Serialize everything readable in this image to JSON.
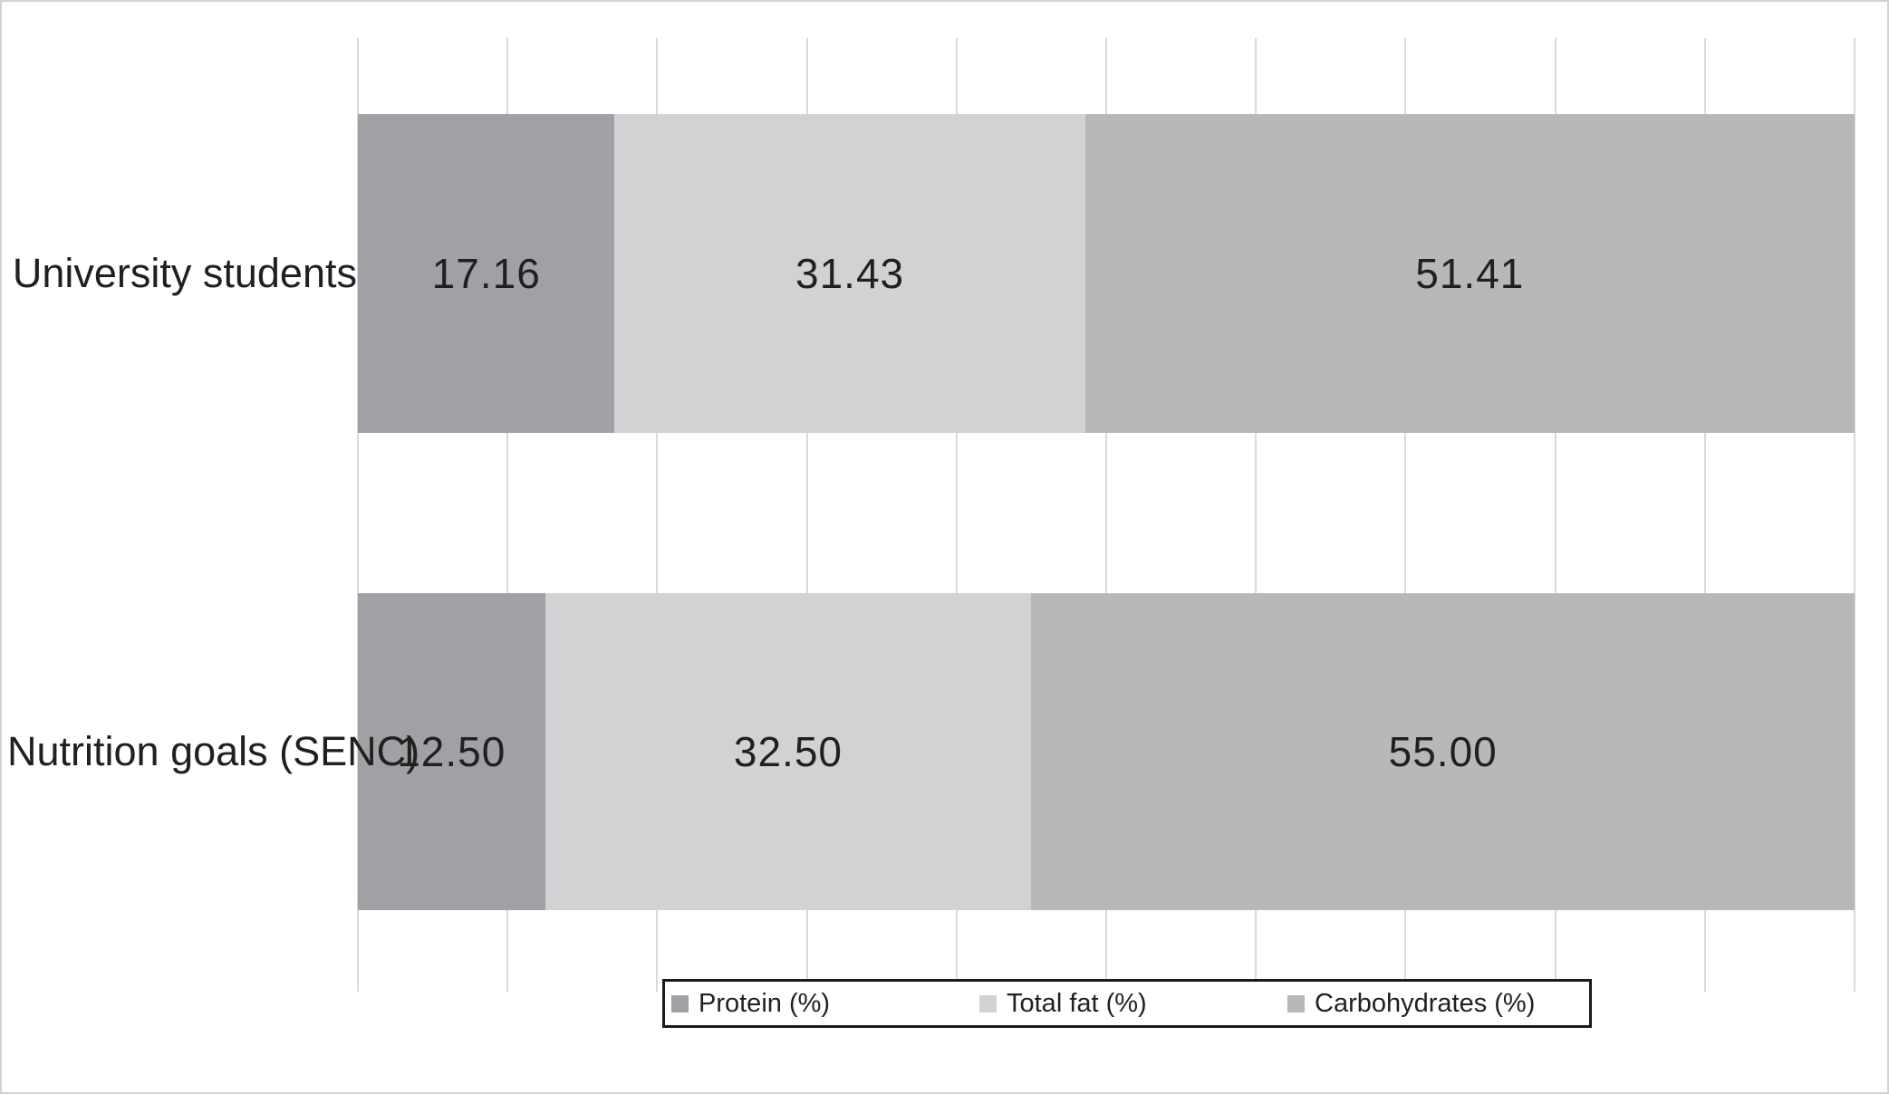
{
  "figure": {
    "background": "#ffffff",
    "border_color": "#d1d2d4"
  },
  "chart_data": {
    "type": "bar",
    "orientation": "horizontal",
    "stacked": true,
    "title": "",
    "xlabel": "",
    "ylabel": "",
    "xlim": [
      0,
      100
    ],
    "gridline_interval": 10,
    "grid": true,
    "gridline_color": "#d9dadb",
    "legend_position": "bottom",
    "legend_border_color": "#1a1a1a",
    "value_label_decimals": 2,
    "value_label_color": "#231f20",
    "categories": [
      "University students",
      "Nutrition goals (SENC)"
    ],
    "series": [
      {
        "name": "Protein (%)",
        "color": "#9fa1a4",
        "values": [
          17.16,
          12.5
        ]
      },
      {
        "name": "Total fat (%)",
        "color": "#d1d2d4",
        "values": [
          31.43,
          32.5
        ]
      },
      {
        "name": "Carbohydrates (%)",
        "color": "#b6b8ba",
        "values": [
          51.41,
          55.0
        ]
      }
    ]
  }
}
